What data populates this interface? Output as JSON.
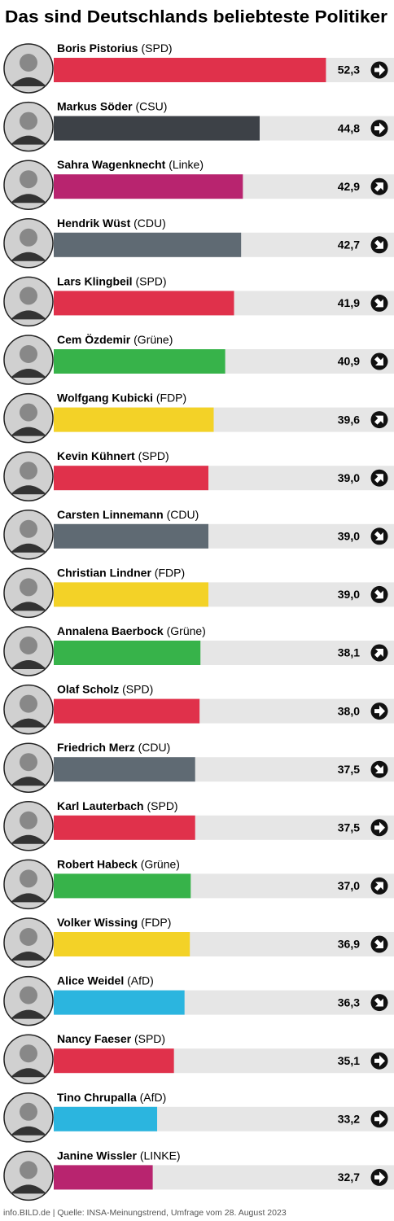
{
  "chart_data": {
    "type": "bar",
    "orientation": "horizontal",
    "title": "Das sind Deutschlands beliebteste Politiker",
    "categories": [
      "Boris Pistorius",
      "Markus Söder",
      "Sahra Wagenknecht",
      "Hendrik Wüst",
      "Lars Klingbeil",
      "Cem Özdemir",
      "Wolfgang Kubicki",
      "Kevin Kühnert",
      "Carsten Linnemann",
      "Christian Lindner",
      "Annalena Baerbock",
      "Olaf Scholz",
      "Friedrich Merz",
      "Karl Lauterbach",
      "Robert Habeck",
      "Volker Wissing",
      "Alice Weidel",
      "Nancy Faeser",
      "Tino Chrupalla",
      "Janine Wissler"
    ],
    "parties": [
      "(SPD)",
      "(CSU)",
      "(Linke)",
      "(CDU)",
      "(SPD)",
      "(Grüne)",
      "(FDP)",
      "(SPD)",
      "(CDU)",
      "(FDP)",
      "(Grüne)",
      "(SPD)",
      "(CDU)",
      "(SPD)",
      "(Grüne)",
      "(FDP)",
      "(AfD)",
      "(SPD)",
      "(AfD)",
      "(LINKE)"
    ],
    "values": [
      52.3,
      44.8,
      42.9,
      42.7,
      41.9,
      40.9,
      39.6,
      39.0,
      39.0,
      39.0,
      38.1,
      38.0,
      37.5,
      37.5,
      37.0,
      36.9,
      36.3,
      35.1,
      33.2,
      32.7
    ],
    "value_labels": [
      "52,3",
      "44,8",
      "42,9",
      "42,7",
      "41,9",
      "40,9",
      "39,6",
      "39,0",
      "39,0",
      "39,0",
      "38,1",
      "38,0",
      "37,5",
      "37,5",
      "37,0",
      "36,9",
      "36,3",
      "35,1",
      "33,2",
      "32,7"
    ],
    "colors": [
      "#e0314b",
      "#3d4147",
      "#b8246f",
      "#5f6a73",
      "#e0314b",
      "#37b34a",
      "#f3d227",
      "#e0314b",
      "#5f6a73",
      "#f3d227",
      "#37b34a",
      "#e0314b",
      "#5f6a73",
      "#e0314b",
      "#37b34a",
      "#f3d227",
      "#2bb5df",
      "#e0314b",
      "#2bb5df",
      "#b8246f"
    ],
    "trends": [
      "right",
      "right",
      "up",
      "down",
      "down",
      "down",
      "up",
      "up",
      "down",
      "down",
      "up",
      "right",
      "down",
      "right",
      "up",
      "down",
      "down",
      "right",
      "right",
      "right"
    ],
    "xlim": [
      21.5,
      60
    ],
    "source": "info.BILD.de | Quelle: INSA-Meinungstrend, Umfrage vom 28. August 2023"
  }
}
